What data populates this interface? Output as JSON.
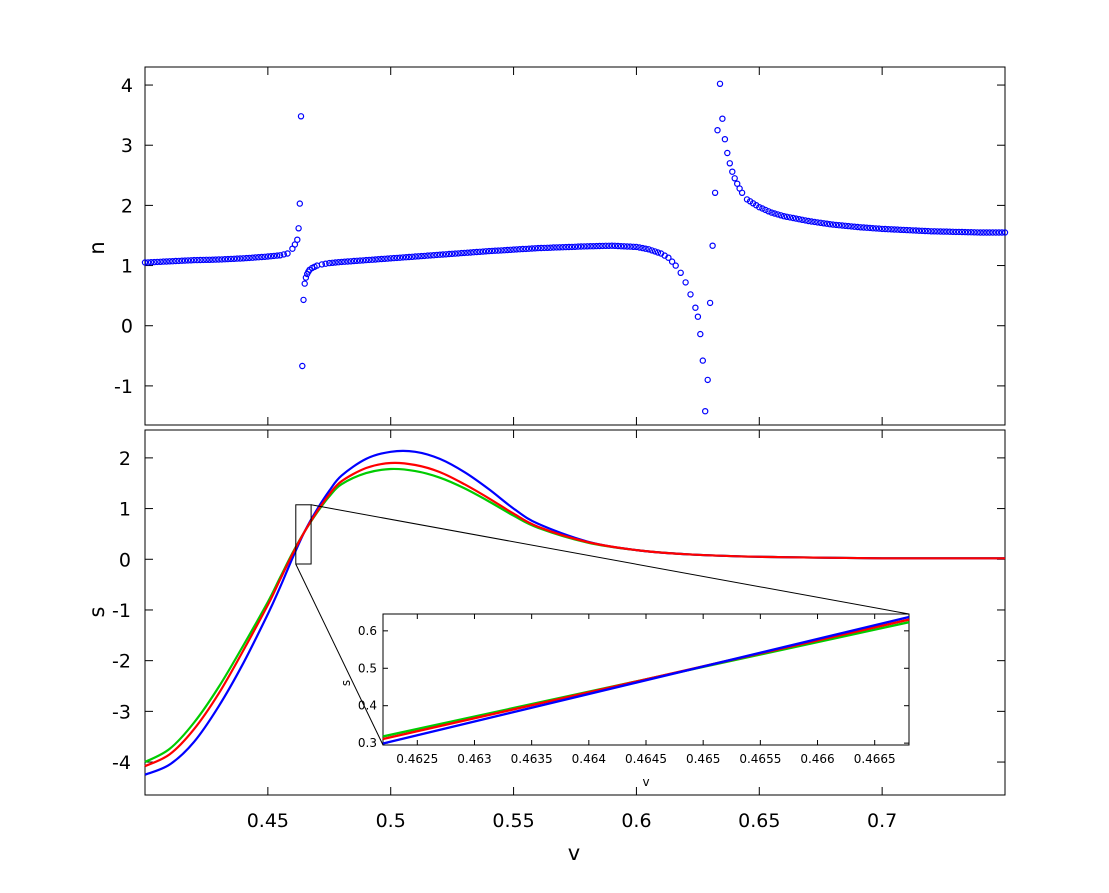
{
  "chart_data": [
    {
      "type": "scatter",
      "ylabel": "n",
      "xlabel": "",
      "xlim": [
        0.4,
        0.75
      ],
      "ylim": [
        -1.65,
        4.3
      ],
      "yticks": [
        "-1",
        "0",
        "1",
        "2",
        "3",
        "4"
      ],
      "ytick_values": [
        -1,
        0,
        1,
        2,
        3,
        4
      ],
      "xtick_values": [
        0.45,
        0.5,
        0.55,
        0.6,
        0.65,
        0.7
      ],
      "show_x_tick_labels": false,
      "marker": "circle-open",
      "color": "#0000ff",
      "series": [
        {
          "x": [
            0.4,
            0.41,
            0.42,
            0.43,
            0.44,
            0.45,
            0.455,
            0.458,
            0.46,
            0.461,
            0.462,
            0.4625,
            0.463,
            0.4635,
            0.464,
            0.4645,
            0.465,
            0.4655,
            0.466,
            0.4665,
            0.467,
            0.468,
            0.469,
            0.47,
            0.472,
            0.475,
            0.48,
            0.49,
            0.5,
            0.52,
            0.54,
            0.56,
            0.58,
            0.59,
            0.6,
            0.605,
            0.61,
            0.613,
            0.616,
            0.618,
            0.62,
            0.622,
            0.624,
            0.625,
            0.626,
            0.627,
            0.628,
            0.629,
            0.63,
            0.631,
            0.632,
            0.633,
            0.634,
            0.635,
            0.636,
            0.637,
            0.638,
            0.639,
            0.64,
            0.641,
            0.642,
            0.643,
            0.645,
            0.65,
            0.655,
            0.66,
            0.67,
            0.68,
            0.69,
            0.7,
            0.71,
            0.72,
            0.73,
            0.74,
            0.75
          ],
          "y": [
            1.05,
            1.07,
            1.09,
            1.1,
            1.12,
            1.15,
            1.17,
            1.2,
            1.28,
            1.35,
            1.43,
            1.62,
            2.03,
            3.48,
            -0.67,
            0.43,
            0.7,
            0.8,
            0.86,
            0.9,
            0.93,
            0.96,
            0.98,
            1.0,
            1.02,
            1.04,
            1.06,
            1.09,
            1.12,
            1.18,
            1.24,
            1.29,
            1.32,
            1.33,
            1.31,
            1.27,
            1.2,
            1.13,
            1.0,
            0.88,
            0.72,
            0.52,
            0.3,
            0.15,
            -0.14,
            -0.58,
            -1.42,
            -0.9,
            0.38,
            1.33,
            2.21,
            3.25,
            4.02,
            3.44,
            3.1,
            2.87,
            2.7,
            2.56,
            2.45,
            2.36,
            2.28,
            2.21,
            2.1,
            1.97,
            1.88,
            1.82,
            1.74,
            1.68,
            1.64,
            1.61,
            1.59,
            1.57,
            1.56,
            1.55,
            1.55
          ]
        }
      ]
    },
    {
      "type": "line",
      "ylabel": "s",
      "xlabel": "v",
      "xlim": [
        0.4,
        0.75
      ],
      "ylim": [
        -4.65,
        2.55
      ],
      "yticks": [
        "-4",
        "-3",
        "-2",
        "-1",
        "0",
        "1",
        "2"
      ],
      "ytick_values": [
        -4,
        -3,
        -2,
        -1,
        0,
        1,
        2
      ],
      "xticks": [
        "0.45",
        "0.5",
        "0.55",
        "0.6",
        "0.65",
        "0.7"
      ],
      "xtick_values": [
        0.45,
        0.5,
        0.55,
        0.6,
        0.65,
        0.7
      ],
      "x": [
        0.4,
        0.41,
        0.42,
        0.43,
        0.44,
        0.45,
        0.455,
        0.46,
        0.465,
        0.47,
        0.475,
        0.48,
        0.49,
        0.5,
        0.51,
        0.52,
        0.53,
        0.54,
        0.55,
        0.56,
        0.58,
        0.6,
        0.62,
        0.64,
        0.66,
        0.68,
        0.7,
        0.72,
        0.75
      ],
      "series": [
        {
          "color": "#0000ff",
          "values": [
            -4.25,
            -4.05,
            -3.6,
            -2.9,
            -2.05,
            -1.08,
            -0.55,
            0.02,
            0.55,
            0.98,
            1.35,
            1.65,
            1.98,
            2.12,
            2.12,
            1.98,
            1.72,
            1.38,
            1.0,
            0.7,
            0.35,
            0.18,
            0.1,
            0.06,
            0.04,
            0.03,
            0.02,
            0.02,
            0.02
          ]
        },
        {
          "color": "#ff0000",
          "values": [
            -4.08,
            -3.85,
            -3.35,
            -2.65,
            -1.8,
            -0.9,
            -0.4,
            0.1,
            0.55,
            0.94,
            1.28,
            1.54,
            1.8,
            1.9,
            1.86,
            1.72,
            1.48,
            1.2,
            0.9,
            0.64,
            0.34,
            0.18,
            0.1,
            0.06,
            0.04,
            0.03,
            0.02,
            0.02,
            0.02
          ]
        },
        {
          "color": "#00cc00",
          "values": [
            -4.0,
            -3.74,
            -3.22,
            -2.52,
            -1.7,
            -0.84,
            -0.36,
            0.12,
            0.55,
            0.92,
            1.24,
            1.48,
            1.7,
            1.78,
            1.74,
            1.61,
            1.4,
            1.14,
            0.86,
            0.62,
            0.33,
            0.18,
            0.1,
            0.06,
            0.04,
            0.03,
            0.02,
            0.02,
            0.02
          ]
        }
      ],
      "zoom_box": {
        "xlim": [
          0.4622,
          0.4668
        ],
        "ylim": [
          0.3,
          0.64
        ]
      }
    },
    {
      "type": "line",
      "inset": true,
      "ylabel": "s",
      "xlabel": "v",
      "xlim": [
        0.4622,
        0.4668
      ],
      "ylim": [
        0.295,
        0.645
      ],
      "yticks": [
        "0.3",
        "0.4",
        "0.5",
        "0.6"
      ],
      "ytick_values": [
        0.3,
        0.4,
        0.5,
        0.6
      ],
      "xticks": [
        "0.4625",
        "0.463",
        "0.4635",
        "0.464",
        "0.4645",
        "0.465",
        "0.4655",
        "0.466",
        "0.4665"
      ],
      "xtick_values": [
        0.4625,
        0.463,
        0.4635,
        0.464,
        0.4645,
        0.465,
        0.4655,
        0.466,
        0.4665
      ],
      "x": [
        0.4622,
        0.4668
      ],
      "series": [
        {
          "color": "#0000ff",
          "values": [
            0.299,
            0.637
          ]
        },
        {
          "color": "#ff0000",
          "values": [
            0.311,
            0.63
          ]
        },
        {
          "color": "#00cc00",
          "values": [
            0.318,
            0.623
          ]
        }
      ]
    }
  ]
}
